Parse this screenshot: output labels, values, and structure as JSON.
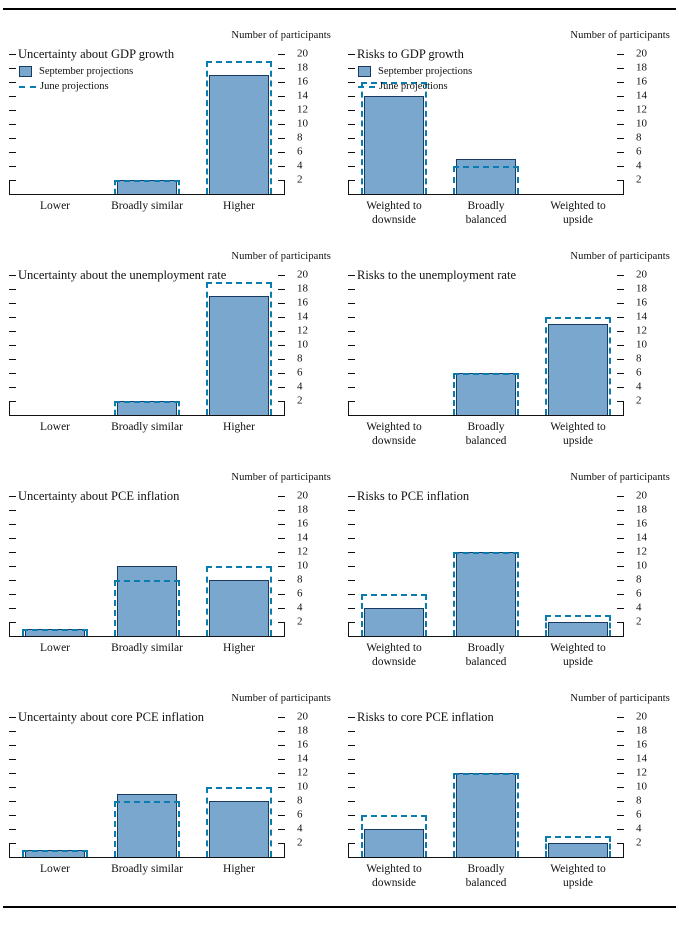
{
  "page": {
    "participants_label": "Number of participants",
    "yticks": [
      2,
      4,
      6,
      8,
      10,
      12,
      14,
      16,
      18,
      20
    ]
  },
  "colors": {
    "bar_fill": "#7aa7ce",
    "bar_stroke": "#1b3a5f",
    "june_dash": "#0a7cb0",
    "axis": "#111111"
  },
  "legend": {
    "september_label": "September projections",
    "june_label": "June projections"
  },
  "chart_data": [
    {
      "type": "bar",
      "title": "Uncertainty about GDP growth",
      "ylabel": "Number of participants",
      "ylim": [
        0,
        20
      ],
      "yticks": [
        2,
        4,
        6,
        8,
        10,
        12,
        14,
        16,
        18,
        20
      ],
      "grid": false,
      "legend": true,
      "legend_position": "top-left",
      "categories": [
        "Lower",
        "Broadly similar",
        "Higher"
      ],
      "series": [
        {
          "name": "September projections",
          "values": [
            0,
            2,
            17
          ]
        },
        {
          "name": "June projections",
          "values": [
            0,
            2,
            19
          ]
        }
      ]
    },
    {
      "type": "bar",
      "title": "Risks to GDP growth",
      "ylabel": "Number of participants",
      "ylim": [
        0,
        20
      ],
      "yticks": [
        2,
        4,
        6,
        8,
        10,
        12,
        14,
        16,
        18,
        20
      ],
      "grid": false,
      "legend": true,
      "legend_position": "top-left",
      "categories": [
        "Weighted to downside",
        "Broadly balanced",
        "Weighted to upside"
      ],
      "series": [
        {
          "name": "September projections",
          "values": [
            14,
            5,
            0
          ]
        },
        {
          "name": "June projections",
          "values": [
            16,
            4,
            0
          ]
        }
      ]
    },
    {
      "type": "bar",
      "title": "Uncertainty about the unemployment rate",
      "ylabel": "Number of participants",
      "ylim": [
        0,
        20
      ],
      "yticks": [
        2,
        4,
        6,
        8,
        10,
        12,
        14,
        16,
        18,
        20
      ],
      "grid": false,
      "legend": false,
      "categories": [
        "Lower",
        "Broadly similar",
        "Higher"
      ],
      "series": [
        {
          "name": "September projections",
          "values": [
            0,
            2,
            17
          ]
        },
        {
          "name": "June projections",
          "values": [
            0,
            2,
            19
          ]
        }
      ]
    },
    {
      "type": "bar",
      "title": "Risks to the unemployment rate",
      "ylabel": "Number of participants",
      "ylim": [
        0,
        20
      ],
      "yticks": [
        2,
        4,
        6,
        8,
        10,
        12,
        14,
        16,
        18,
        20
      ],
      "grid": false,
      "legend": false,
      "categories": [
        "Weighted to downside",
        "Broadly balanced",
        "Weighted to upside"
      ],
      "series": [
        {
          "name": "September projections",
          "values": [
            0,
            6,
            13
          ]
        },
        {
          "name": "June projections",
          "values": [
            0,
            6,
            14
          ]
        }
      ]
    },
    {
      "type": "bar",
      "title": "Uncertainty about PCE inflation",
      "ylabel": "Number of participants",
      "ylim": [
        0,
        20
      ],
      "yticks": [
        2,
        4,
        6,
        8,
        10,
        12,
        14,
        16,
        18,
        20
      ],
      "grid": false,
      "legend": false,
      "categories": [
        "Lower",
        "Broadly similar",
        "Higher"
      ],
      "series": [
        {
          "name": "September projections",
          "values": [
            1,
            10,
            8
          ]
        },
        {
          "name": "June projections",
          "values": [
            1,
            8,
            10
          ]
        }
      ]
    },
    {
      "type": "bar",
      "title": "Risks to PCE inflation",
      "ylabel": "Number of participants",
      "ylim": [
        0,
        20
      ],
      "yticks": [
        2,
        4,
        6,
        8,
        10,
        12,
        14,
        16,
        18,
        20
      ],
      "grid": false,
      "legend": false,
      "categories": [
        "Weighted to downside",
        "Broadly balanced",
        "Weighted to upside"
      ],
      "series": [
        {
          "name": "September projections",
          "values": [
            4,
            12,
            2
          ]
        },
        {
          "name": "June projections",
          "values": [
            6,
            12,
            3
          ]
        }
      ]
    },
    {
      "type": "bar",
      "title": "Uncertainty about core PCE inflation",
      "ylabel": "Number of participants",
      "ylim": [
        0,
        20
      ],
      "yticks": [
        2,
        4,
        6,
        8,
        10,
        12,
        14,
        16,
        18,
        20
      ],
      "grid": false,
      "legend": false,
      "categories": [
        "Lower",
        "Broadly similar",
        "Higher"
      ],
      "series": [
        {
          "name": "September projections",
          "values": [
            1,
            9,
            8
          ]
        },
        {
          "name": "June projections",
          "values": [
            1,
            8,
            10
          ]
        }
      ]
    },
    {
      "type": "bar",
      "title": "Risks to core PCE inflation",
      "ylabel": "Number of participants",
      "ylim": [
        0,
        20
      ],
      "yticks": [
        2,
        4,
        6,
        8,
        10,
        12,
        14,
        16,
        18,
        20
      ],
      "grid": false,
      "legend": false,
      "categories": [
        "Weighted to downside",
        "Broadly balanced",
        "Weighted to upside"
      ],
      "series": [
        {
          "name": "September projections",
          "values": [
            4,
            12,
            2
          ]
        },
        {
          "name": "June projections",
          "values": [
            6,
            12,
            3
          ]
        }
      ]
    }
  ]
}
